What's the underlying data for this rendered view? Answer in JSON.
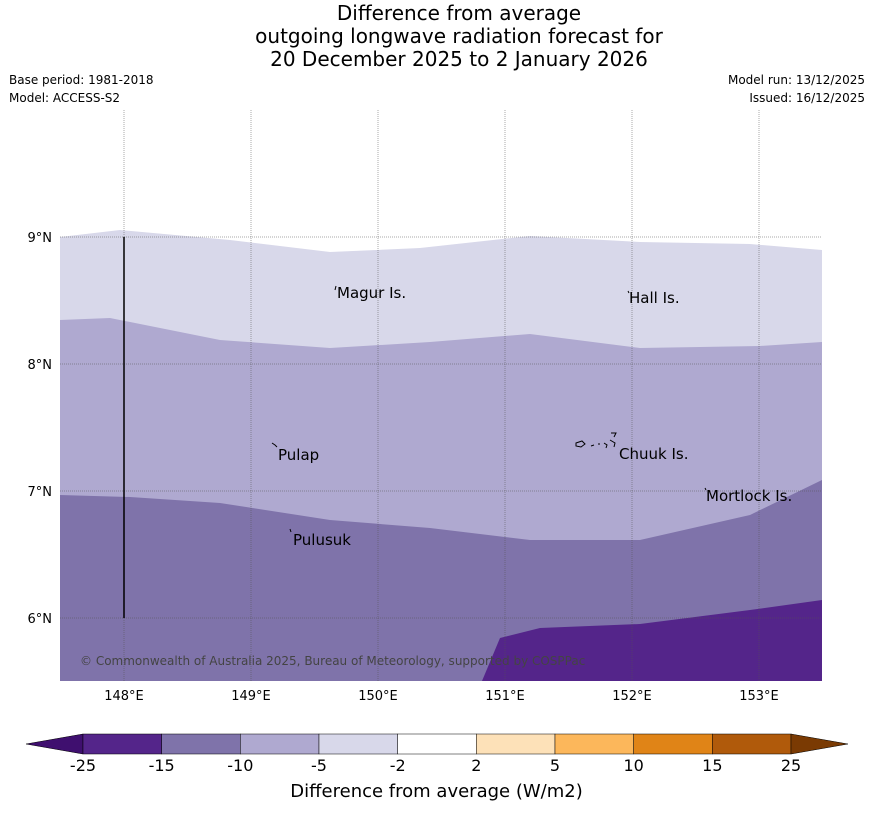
{
  "title": {
    "line1": "Difference from average",
    "line2": "outgoing longwave radiation forecast for",
    "line3": "20 December 2025 to 2 January 2026"
  },
  "meta": {
    "base_period": "Base period: 1981-2018",
    "model": "Model: ACCESS-S2",
    "model_run": "Model run: 13/12/2025",
    "issued": "Issued: 16/12/2025"
  },
  "map": {
    "lon_labels": [
      "148°E",
      "149°E",
      "150°E",
      "151°E",
      "152°E",
      "153°E"
    ],
    "lat_labels": [
      "9°N",
      "8°N",
      "7°N",
      "6°N"
    ],
    "places": [
      "Magur Is.",
      "Hall Is.",
      "Pulap",
      "Chuuk Is.",
      "Mortlock Is.",
      "Pulusuk"
    ],
    "copyright": "© Commonwealth of Australia 2025, Bureau of Meteorology, supported by COSPPac"
  },
  "colorbar": {
    "title": "Difference from average (W/m2)",
    "ticks": [
      "-25",
      "-15",
      "-10",
      "-5",
      "-2",
      "2",
      "5",
      "10",
      "15",
      "25"
    ],
    "colors": [
      "#3f0f6f",
      "#54258a",
      "#7f73aa",
      "#afa9d0",
      "#d8d8ea",
      "#ffffff",
      "#fde1b8",
      "#fcb75b",
      "#e08417",
      "#b05a0b",
      "#7a3a03"
    ]
  }
}
